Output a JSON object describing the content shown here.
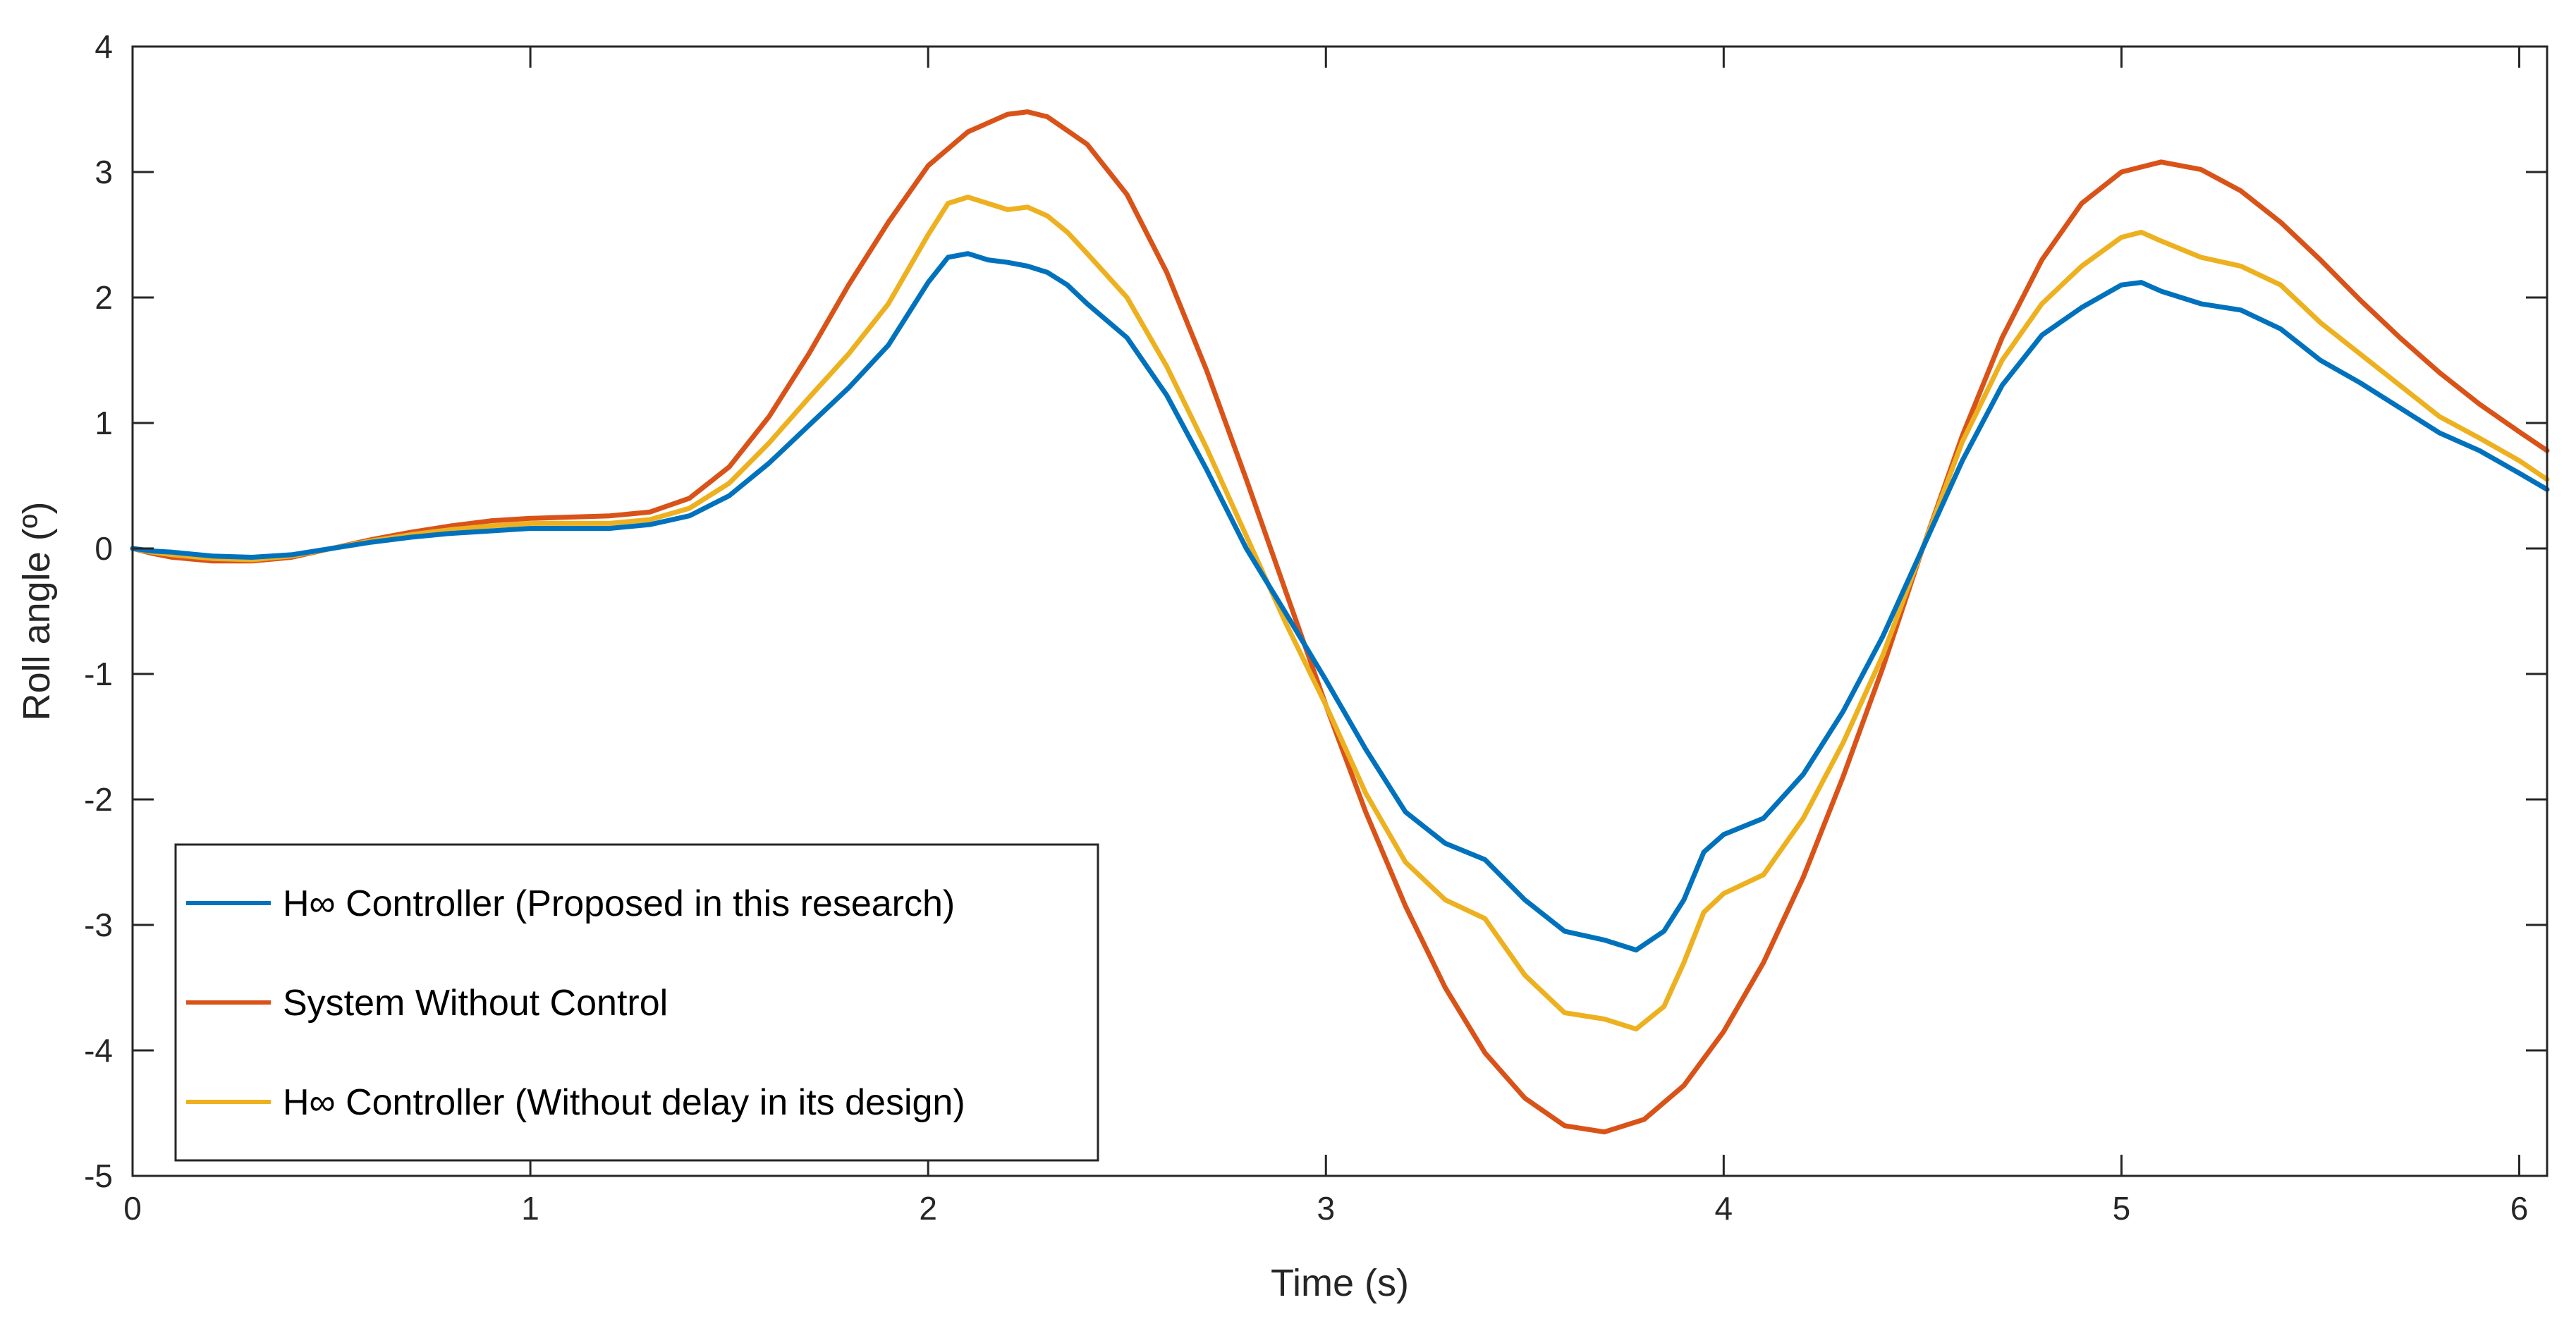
{
  "chart_data": {
    "type": "line",
    "title": "",
    "xlabel": "Time (s)",
    "ylabel": "Roll angle (º)",
    "xlim": [
      0,
      6.07
    ],
    "ylim": [
      -5,
      4
    ],
    "xticks": [
      0,
      1,
      2,
      3,
      4,
      5,
      6
    ],
    "yticks": [
      -5,
      -4,
      -3,
      -2,
      -1,
      0,
      1,
      2,
      3,
      4
    ],
    "grid": false,
    "legend_location": "bottom-left",
    "series": [
      {
        "name": "H∞ Controller (Proposed in this research)",
        "color": "#0072BD",
        "points": [
          [
            0,
            0
          ],
          [
            0.05,
            -0.02
          ],
          [
            0.1,
            -0.03
          ],
          [
            0.2,
            -0.06
          ],
          [
            0.3,
            -0.07
          ],
          [
            0.4,
            -0.05
          ],
          [
            0.5,
            0.0
          ],
          [
            0.6,
            0.05
          ],
          [
            0.7,
            0.09
          ],
          [
            0.8,
            0.12
          ],
          [
            0.9,
            0.14
          ],
          [
            1.0,
            0.16
          ],
          [
            1.1,
            0.16
          ],
          [
            1.2,
            0.16
          ],
          [
            1.3,
            0.19
          ],
          [
            1.4,
            0.26
          ],
          [
            1.5,
            0.42
          ],
          [
            1.6,
            0.68
          ],
          [
            1.7,
            0.98
          ],
          [
            1.8,
            1.28
          ],
          [
            1.9,
            1.62
          ],
          [
            2.0,
            2.12
          ],
          [
            2.05,
            2.32
          ],
          [
            2.1,
            2.35
          ],
          [
            2.15,
            2.3
          ],
          [
            2.2,
            2.28
          ],
          [
            2.25,
            2.25
          ],
          [
            2.3,
            2.2
          ],
          [
            2.35,
            2.1
          ],
          [
            2.4,
            1.95
          ],
          [
            2.5,
            1.68
          ],
          [
            2.6,
            1.22
          ],
          [
            2.7,
            0.63
          ],
          [
            2.8,
            0.0
          ],
          [
            2.9,
            -0.52
          ],
          [
            3.0,
            -1.05
          ],
          [
            3.1,
            -1.6
          ],
          [
            3.2,
            -2.1
          ],
          [
            3.3,
            -2.35
          ],
          [
            3.4,
            -2.48
          ],
          [
            3.5,
            -2.8
          ],
          [
            3.6,
            -3.05
          ],
          [
            3.7,
            -3.12
          ],
          [
            3.78,
            -3.2
          ],
          [
            3.85,
            -3.05
          ],
          [
            3.9,
            -2.8
          ],
          [
            3.95,
            -2.42
          ],
          [
            4.0,
            -2.28
          ],
          [
            4.1,
            -2.15
          ],
          [
            4.2,
            -1.8
          ],
          [
            4.3,
            -1.3
          ],
          [
            4.4,
            -0.7
          ],
          [
            4.5,
            0.0
          ],
          [
            4.6,
            0.7
          ],
          [
            4.7,
            1.3
          ],
          [
            4.8,
            1.7
          ],
          [
            4.9,
            1.92
          ],
          [
            5.0,
            2.1
          ],
          [
            5.05,
            2.12
          ],
          [
            5.1,
            2.05
          ],
          [
            5.2,
            1.95
          ],
          [
            5.3,
            1.9
          ],
          [
            5.4,
            1.75
          ],
          [
            5.5,
            1.5
          ],
          [
            5.6,
            1.32
          ],
          [
            5.7,
            1.12
          ],
          [
            5.8,
            0.92
          ],
          [
            5.9,
            0.78
          ],
          [
            6.0,
            0.6
          ],
          [
            6.07,
            0.47
          ]
        ]
      },
      {
        "name": "System Without Control",
        "color": "#D95319",
        "points": [
          [
            0,
            0
          ],
          [
            0.05,
            -0.04
          ],
          [
            0.1,
            -0.07
          ],
          [
            0.2,
            -0.1
          ],
          [
            0.3,
            -0.1
          ],
          [
            0.4,
            -0.07
          ],
          [
            0.5,
            0.0
          ],
          [
            0.6,
            0.07
          ],
          [
            0.7,
            0.13
          ],
          [
            0.8,
            0.18
          ],
          [
            0.9,
            0.22
          ],
          [
            1.0,
            0.24
          ],
          [
            1.1,
            0.25
          ],
          [
            1.2,
            0.26
          ],
          [
            1.3,
            0.29
          ],
          [
            1.4,
            0.4
          ],
          [
            1.5,
            0.65
          ],
          [
            1.6,
            1.05
          ],
          [
            1.7,
            1.55
          ],
          [
            1.8,
            2.1
          ],
          [
            1.9,
            2.6
          ],
          [
            2.0,
            3.05
          ],
          [
            2.1,
            3.32
          ],
          [
            2.2,
            3.46
          ],
          [
            2.25,
            3.48
          ],
          [
            2.3,
            3.44
          ],
          [
            2.4,
            3.22
          ],
          [
            2.5,
            2.82
          ],
          [
            2.6,
            2.2
          ],
          [
            2.7,
            1.42
          ],
          [
            2.8,
            0.55
          ],
          [
            2.9,
            -0.35
          ],
          [
            3.0,
            -1.25
          ],
          [
            3.1,
            -2.1
          ],
          [
            3.2,
            -2.85
          ],
          [
            3.3,
            -3.5
          ],
          [
            3.4,
            -4.02
          ],
          [
            3.5,
            -4.38
          ],
          [
            3.6,
            -4.6
          ],
          [
            3.7,
            -4.65
          ],
          [
            3.8,
            -4.55
          ],
          [
            3.9,
            -4.28
          ],
          [
            4.0,
            -3.85
          ],
          [
            4.1,
            -3.3
          ],
          [
            4.2,
            -2.62
          ],
          [
            4.3,
            -1.82
          ],
          [
            4.4,
            -0.95
          ],
          [
            4.5,
            0.0
          ],
          [
            4.6,
            0.9
          ],
          [
            4.7,
            1.68
          ],
          [
            4.8,
            2.3
          ],
          [
            4.9,
            2.75
          ],
          [
            5.0,
            3.0
          ],
          [
            5.1,
            3.08
          ],
          [
            5.2,
            3.02
          ],
          [
            5.3,
            2.85
          ],
          [
            5.4,
            2.6
          ],
          [
            5.5,
            2.3
          ],
          [
            5.6,
            1.98
          ],
          [
            5.7,
            1.68
          ],
          [
            5.8,
            1.4
          ],
          [
            5.9,
            1.15
          ],
          [
            6.0,
            0.93
          ],
          [
            6.07,
            0.78
          ]
        ]
      },
      {
        "name": "H∞ Controller (Without delay in its design)",
        "color": "#EDB120",
        "points": [
          [
            0,
            0
          ],
          [
            0.05,
            -0.03
          ],
          [
            0.1,
            -0.05
          ],
          [
            0.2,
            -0.08
          ],
          [
            0.3,
            -0.09
          ],
          [
            0.4,
            -0.06
          ],
          [
            0.5,
            0.0
          ],
          [
            0.6,
            0.06
          ],
          [
            0.7,
            0.11
          ],
          [
            0.8,
            0.15
          ],
          [
            0.9,
            0.18
          ],
          [
            1.0,
            0.2
          ],
          [
            1.1,
            0.2
          ],
          [
            1.2,
            0.2
          ],
          [
            1.3,
            0.23
          ],
          [
            1.4,
            0.32
          ],
          [
            1.5,
            0.52
          ],
          [
            1.6,
            0.84
          ],
          [
            1.7,
            1.2
          ],
          [
            1.8,
            1.55
          ],
          [
            1.9,
            1.95
          ],
          [
            2.0,
            2.5
          ],
          [
            2.05,
            2.75
          ],
          [
            2.1,
            2.8
          ],
          [
            2.15,
            2.75
          ],
          [
            2.2,
            2.7
          ],
          [
            2.25,
            2.72
          ],
          [
            2.3,
            2.65
          ],
          [
            2.35,
            2.52
          ],
          [
            2.4,
            2.35
          ],
          [
            2.5,
            2.0
          ],
          [
            2.6,
            1.45
          ],
          [
            2.7,
            0.8
          ],
          [
            2.8,
            0.1
          ],
          [
            2.9,
            -0.6
          ],
          [
            3.0,
            -1.25
          ],
          [
            3.1,
            -1.95
          ],
          [
            3.2,
            -2.5
          ],
          [
            3.3,
            -2.8
          ],
          [
            3.4,
            -2.95
          ],
          [
            3.5,
            -3.4
          ],
          [
            3.6,
            -3.7
          ],
          [
            3.7,
            -3.75
          ],
          [
            3.78,
            -3.83
          ],
          [
            3.85,
            -3.65
          ],
          [
            3.9,
            -3.3
          ],
          [
            3.95,
            -2.9
          ],
          [
            4.0,
            -2.75
          ],
          [
            4.1,
            -2.6
          ],
          [
            4.2,
            -2.15
          ],
          [
            4.3,
            -1.55
          ],
          [
            4.4,
            -0.85
          ],
          [
            4.5,
            0.0
          ],
          [
            4.6,
            0.85
          ],
          [
            4.7,
            1.5
          ],
          [
            4.8,
            1.95
          ],
          [
            4.9,
            2.25
          ],
          [
            5.0,
            2.48
          ],
          [
            5.05,
            2.52
          ],
          [
            5.1,
            2.45
          ],
          [
            5.2,
            2.32
          ],
          [
            5.3,
            2.25
          ],
          [
            5.4,
            2.1
          ],
          [
            5.5,
            1.8
          ],
          [
            5.6,
            1.55
          ],
          [
            5.7,
            1.3
          ],
          [
            5.8,
            1.05
          ],
          [
            5.9,
            0.88
          ],
          [
            6.0,
            0.7
          ],
          [
            6.07,
            0.55
          ]
        ]
      }
    ]
  }
}
